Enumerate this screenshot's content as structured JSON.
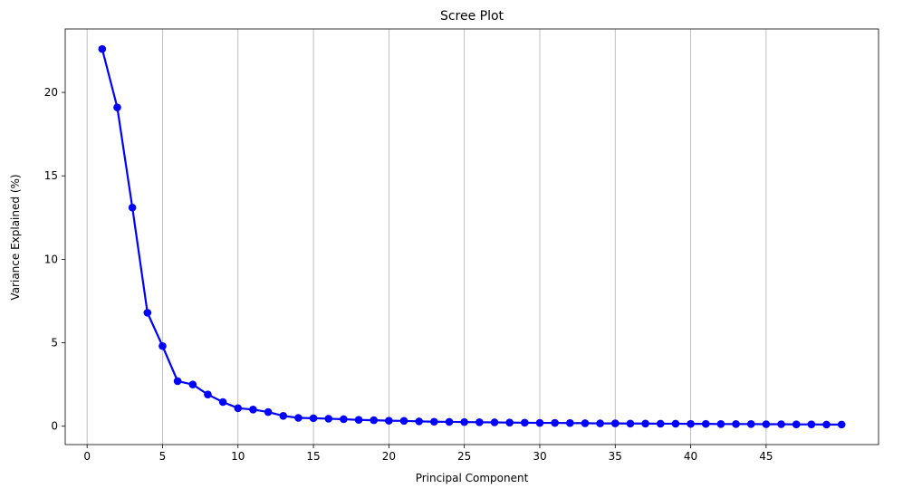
{
  "chart_data": {
    "type": "line",
    "title": "Scree Plot",
    "xlabel": "Principal Component",
    "ylabel": "Variance Explained (%)",
    "xlim": [
      -1.45,
      52.45
    ],
    "ylim": [
      -1.1,
      23.8
    ],
    "x_ticks": [
      0,
      5,
      10,
      15,
      20,
      25,
      30,
      35,
      40,
      45
    ],
    "y_ticks": [
      0,
      5,
      10,
      15,
      20
    ],
    "grid": "vertical",
    "legend": "none",
    "series": [
      {
        "color": "#0000ff",
        "marker": "circle",
        "x": [
          1,
          2,
          3,
          4,
          5,
          6,
          7,
          8,
          9,
          10,
          11,
          12,
          13,
          14,
          15,
          16,
          17,
          18,
          19,
          20,
          21,
          22,
          23,
          24,
          25,
          26,
          27,
          28,
          29,
          30,
          31,
          32,
          33,
          34,
          35,
          36,
          37,
          38,
          39,
          40,
          41,
          42,
          43,
          44,
          45,
          46,
          47,
          48,
          49,
          50
        ],
        "values": [
          22.6,
          19.1,
          13.1,
          6.8,
          4.8,
          2.7,
          2.5,
          1.9,
          1.45,
          1.08,
          1.0,
          0.85,
          0.62,
          0.5,
          0.48,
          0.45,
          0.42,
          0.38,
          0.36,
          0.33,
          0.32,
          0.29,
          0.27,
          0.26,
          0.25,
          0.24,
          0.23,
          0.22,
          0.21,
          0.2,
          0.2,
          0.19,
          0.18,
          0.17,
          0.17,
          0.16,
          0.16,
          0.15,
          0.15,
          0.14,
          0.14,
          0.13,
          0.13,
          0.13,
          0.12,
          0.12,
          0.11,
          0.11,
          0.1,
          0.1
        ]
      }
    ]
  }
}
